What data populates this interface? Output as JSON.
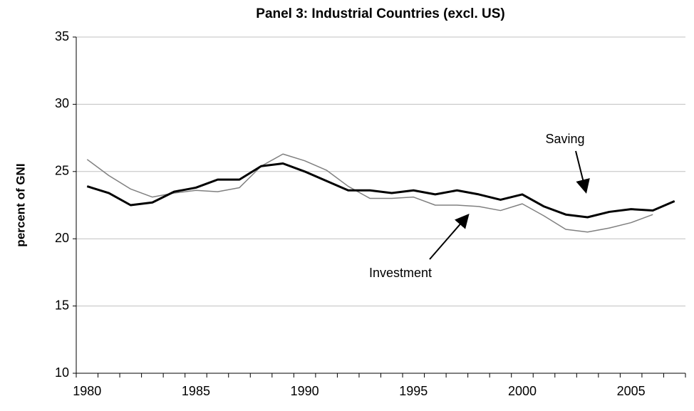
{
  "chart_data": {
    "type": "line",
    "title": "Panel 3: Industrial Countries (excl. US)",
    "y_label": "percent of GNI",
    "categories": [
      "1980",
      null,
      null,
      null,
      null,
      "1985",
      null,
      null,
      null,
      null,
      "1990",
      null,
      null,
      null,
      null,
      "1995",
      null,
      null,
      null,
      null,
      "2000",
      null,
      null,
      null,
      null,
      "2005",
      null,
      null
    ],
    "series": [
      {
        "name": "Saving",
        "color": "#000000",
        "values": [
          23.9,
          23.4,
          22.5,
          22.7,
          23.5,
          23.8,
          24.4,
          24.4,
          25.4,
          25.6,
          25.0,
          24.3,
          23.6,
          23.6,
          23.4,
          23.6,
          23.3,
          23.6,
          23.3,
          22.9,
          23.3,
          22.4,
          21.8,
          21.6,
          22.0,
          22.2,
          22.1,
          22.8
        ]
      },
      {
        "name": "Investment",
        "color": "#808080",
        "values": [
          25.9,
          24.7,
          23.7,
          23.1,
          23.4,
          23.6,
          23.5,
          23.8,
          25.4,
          26.3,
          25.8,
          25.1,
          23.9,
          23.0,
          23.0,
          23.1,
          22.5,
          22.5,
          22.4,
          22.1,
          22.6,
          21.7,
          20.7,
          20.5,
          20.8,
          21.2,
          21.8,
          null
        ]
      }
    ],
    "ylim": [
      10,
      35
    ],
    "yticks": [
      10,
      15,
      20,
      25,
      30,
      35
    ],
    "grid": true
  }
}
